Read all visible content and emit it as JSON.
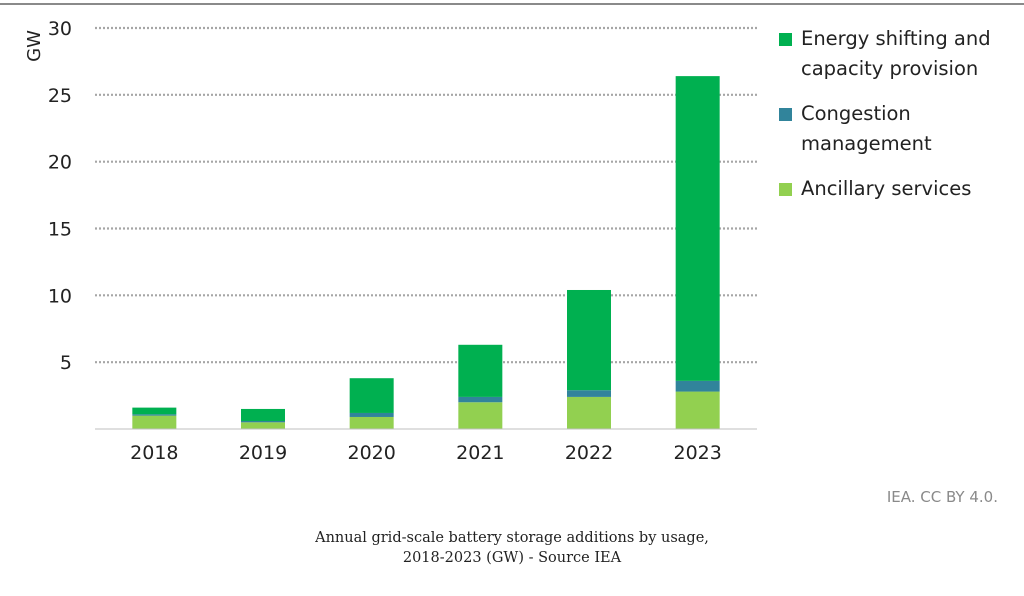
{
  "colors": {
    "energy_shifting": "#00b050",
    "congestion": "#31849b",
    "ancillary": "#92d050"
  },
  "chart_data": {
    "type": "bar",
    "stacked": true,
    "categories": [
      "2018",
      "2019",
      "2020",
      "2021",
      "2022",
      "2023"
    ],
    "series": [
      {
        "name": "Ancillary services",
        "values": [
          1.0,
          0.5,
          0.9,
          2.0,
          2.4,
          2.8
        ]
      },
      {
        "name": "Congestion management",
        "values": [
          0.1,
          0.1,
          0.3,
          0.4,
          0.5,
          0.8
        ]
      },
      {
        "name": "Energy shifting and capacity provision",
        "values": [
          0.5,
          0.9,
          2.6,
          3.9,
          7.5,
          22.8
        ]
      }
    ],
    "ylabel": "GW",
    "ylim": [
      0,
      30
    ],
    "yticks": [
      "5",
      "10",
      "15",
      "20",
      "25",
      "30"
    ],
    "grid": true,
    "legend_position": "right",
    "legend_entries": [
      "Energy shifting and capacity provision",
      "Congestion management",
      "Ancillary services"
    ]
  },
  "legend": {
    "item0_line1": "Energy shifting and",
    "item0_line2": "capacity provision",
    "item1_line1": "Congestion",
    "item1_line2": "management",
    "item2_line1": "Ancillary services"
  },
  "credit": "IEA. CC BY 4.0.",
  "caption": {
    "line1": "Annual grid-scale battery storage additions by usage,",
    "line2": "2018-2023 (GW) - Source IEA"
  }
}
